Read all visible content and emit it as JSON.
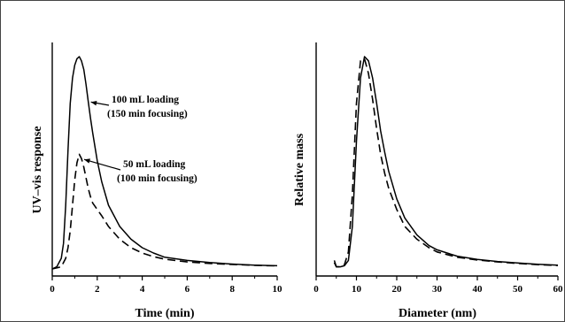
{
  "chart_data": [
    {
      "type": "line",
      "xlabel": "Time (min)",
      "ylabel": "UV–vis response",
      "xlim": [
        0,
        10
      ],
      "ylim": [
        0,
        1
      ],
      "xticks": [
        "0",
        "2",
        "4",
        "6",
        "8",
        "10"
      ],
      "grid": false,
      "annotations": [
        {
          "lines": [
            "100 mL loading",
            "(150 min focusing)"
          ],
          "target_series": 0,
          "target_x": 1.6
        },
        {
          "lines": [
            "50 mL loading",
            "(100 min focusing)"
          ],
          "target_series": 1,
          "target_x": 1.3
        }
      ],
      "series": [
        {
          "style": "solid",
          "x": [
            0,
            0.2,
            0.4,
            0.5,
            0.6,
            0.7,
            0.8,
            0.9,
            1.0,
            1.1,
            1.2,
            1.3,
            1.4,
            1.5,
            1.6,
            1.7,
            1.8,
            2.0,
            2.2,
            2.5,
            3.0,
            3.5,
            4.0,
            4.5,
            5.0,
            6.0,
            7.0,
            8.0,
            9.0,
            10.0
          ],
          "y": [
            0.0,
            0.01,
            0.05,
            0.12,
            0.3,
            0.56,
            0.78,
            0.9,
            0.96,
            0.99,
            1.0,
            0.98,
            0.94,
            0.87,
            0.79,
            0.71,
            0.64,
            0.51,
            0.41,
            0.3,
            0.2,
            0.14,
            0.1,
            0.075,
            0.055,
            0.04,
            0.03,
            0.023,
            0.018,
            0.015
          ]
        },
        {
          "style": "dashed",
          "x": [
            0,
            0.4,
            0.6,
            0.7,
            0.8,
            0.9,
            1.0,
            1.1,
            1.2,
            1.3,
            1.4,
            1.5,
            1.6,
            1.7,
            1.8,
            2.0,
            2.2,
            2.5,
            3.0,
            3.5,
            4.0,
            4.5,
            5.0,
            6.0,
            7.0,
            8.0,
            9.0,
            10.0
          ],
          "y": [
            0.0,
            0.01,
            0.05,
            0.1,
            0.18,
            0.3,
            0.42,
            0.5,
            0.54,
            0.52,
            0.48,
            0.43,
            0.38,
            0.34,
            0.31,
            0.28,
            0.25,
            0.2,
            0.14,
            0.1,
            0.075,
            0.058,
            0.046,
            0.033,
            0.026,
            0.021,
            0.017,
            0.014
          ]
        }
      ]
    },
    {
      "type": "line",
      "xlabel": "Diameter (nm)",
      "ylabel": "Relative mass",
      "xlim": [
        0,
        60
      ],
      "ylim": [
        0,
        1
      ],
      "xticks": [
        "0",
        "10",
        "20",
        "30",
        "40",
        "50",
        "60"
      ],
      "grid": false,
      "series": [
        {
          "style": "solid",
          "x": [
            4.5,
            5,
            6,
            7,
            8,
            9,
            10,
            11,
            12,
            13,
            14,
            15,
            16,
            17,
            18,
            20,
            22,
            25,
            28,
            30,
            35,
            40,
            45,
            50,
            55,
            60
          ],
          "y": [
            0.04,
            0.01,
            0.01,
            0.015,
            0.04,
            0.2,
            0.6,
            0.9,
            1.0,
            0.98,
            0.9,
            0.78,
            0.65,
            0.55,
            0.46,
            0.33,
            0.24,
            0.16,
            0.11,
            0.09,
            0.06,
            0.045,
            0.035,
            0.028,
            0.022,
            0.018
          ]
        },
        {
          "style": "dashed",
          "x": [
            4.5,
            5,
            6,
            7,
            8,
            9,
            10,
            11,
            12,
            13,
            14,
            15,
            16,
            17,
            18,
            20,
            22,
            25,
            28,
            30,
            35,
            40,
            45,
            50,
            55,
            60
          ],
          "y": [
            0.03,
            0.01,
            0.01,
            0.02,
            0.08,
            0.35,
            0.78,
            0.98,
            0.99,
            0.92,
            0.8,
            0.66,
            0.54,
            0.45,
            0.38,
            0.28,
            0.2,
            0.14,
            0.1,
            0.08,
            0.055,
            0.042,
            0.033,
            0.026,
            0.02,
            0.016
          ]
        }
      ]
    }
  ]
}
